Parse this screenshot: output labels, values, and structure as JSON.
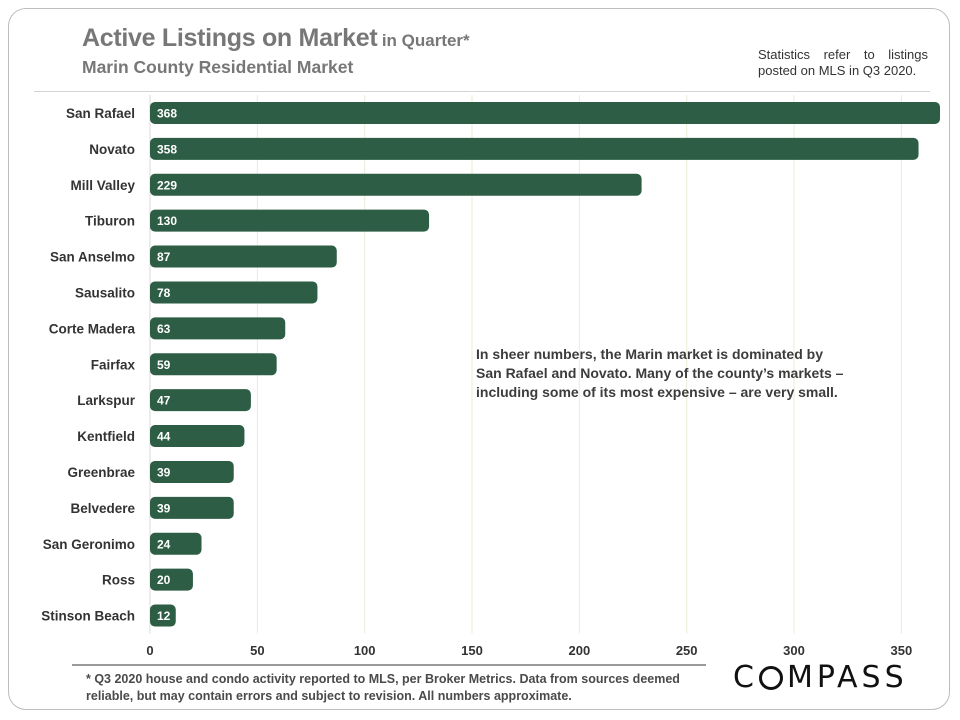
{
  "header": {
    "title_main": "Active Listings on Market",
    "title_suffix": "in Quarter*",
    "subtitle": "Marin County Residential Market",
    "note": "Statistics refer to listings posted on MLS in Q3 2020."
  },
  "annotation": "In sheer numbers, the Marin market is dominated by San Rafael and Novato. Many of the county’s markets – including some of its most expensive – are very small.",
  "footnote": "* Q3 2020 house and condo activity reported to MLS, per Broker Metrics. Data from sources deemed reliable, but may contain errors and subject to revision. All numbers approximate.",
  "logo": {
    "before_o": "C",
    "after_o": "MPASS"
  },
  "colors": {
    "bar": "#2d5e45",
    "gridline": "#e8ecd6",
    "label_text": "#ffffff",
    "axis_text": "#333333"
  },
  "chart_data": {
    "type": "bar",
    "orientation": "horizontal",
    "title": "Active Listings on Market in Quarter*",
    "subtitle": "Marin County Residential Market",
    "categories": [
      "San Rafael",
      "Novato",
      "Mill Valley",
      "Tiburon",
      "San Anselmo",
      "Sausalito",
      "Corte Madera",
      "Fairfax",
      "Larkspur",
      "Kentfield",
      "Greenbrae",
      "Belvedere",
      "San Geronimo",
      "Ross",
      "Stinson Beach"
    ],
    "values": [
      368,
      358,
      229,
      130,
      87,
      78,
      63,
      59,
      47,
      44,
      39,
      39,
      24,
      20,
      12
    ],
    "xlim": [
      0,
      368
    ],
    "xticks": [
      0,
      50,
      100,
      150,
      200,
      250,
      300,
      350
    ],
    "xlabel": "",
    "ylabel": "",
    "grid": true,
    "data_labels": true
  }
}
